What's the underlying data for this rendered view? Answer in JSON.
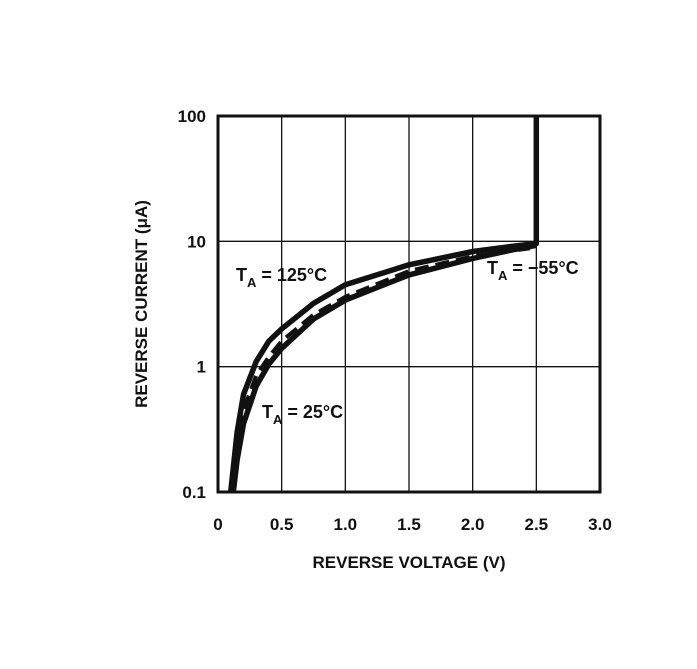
{
  "chart_data": {
    "type": "line",
    "xlabel": "REVERSE VOLTAGE (V)",
    "ylabel": "REVERSE CURRENT (μA)",
    "xlim": [
      0,
      3.0
    ],
    "ylim": [
      0.1,
      100
    ],
    "y_scale": "log",
    "grid": true,
    "x_ticks": [
      "0",
      "0.5",
      "1.0",
      "1.5",
      "2.0",
      "2.5",
      "3.0"
    ],
    "x_tick_values": [
      0,
      0.5,
      1.0,
      1.5,
      2.0,
      2.5,
      3.0
    ],
    "y_ticks": [
      "0.1",
      "1",
      "10",
      "100"
    ],
    "y_tick_values": [
      0.1,
      1,
      10,
      100
    ],
    "series": [
      {
        "name": "T_A = 125°C",
        "style": "solid",
        "x": [
          0.1,
          0.15,
          0.2,
          0.3,
          0.4,
          0.5,
          0.75,
          1.0,
          1.5,
          2.0,
          2.3,
          2.5,
          2.5
        ],
        "y": [
          0.1,
          0.3,
          0.6,
          1.1,
          1.6,
          2.0,
          3.2,
          4.5,
          6.5,
          8.3,
          9.1,
          9.6,
          100
        ]
      },
      {
        "name": "T_A = −55°C",
        "style": "dashed",
        "x": [
          0.12,
          0.15,
          0.2,
          0.3,
          0.4,
          0.5,
          0.75,
          1.0,
          1.5,
          2.0,
          2.3,
          2.45
        ],
        "y": [
          0.1,
          0.2,
          0.45,
          0.85,
          1.2,
          1.6,
          2.6,
          3.6,
          5.8,
          7.6,
          8.4,
          8.8
        ]
      },
      {
        "name": "T_A = 25°C",
        "style": "solid",
        "x": [
          0.12,
          0.15,
          0.2,
          0.3,
          0.4,
          0.5,
          0.75,
          1.0,
          1.5,
          2.0,
          2.3,
          2.5
        ],
        "y": [
          0.1,
          0.18,
          0.35,
          0.7,
          1.05,
          1.4,
          2.4,
          3.4,
          5.4,
          7.3,
          8.5,
          9.3
        ]
      }
    ],
    "annotations": [
      {
        "base": "T",
        "sub": "A",
        "rest": " = 125°C"
      },
      {
        "base": "T",
        "sub": "A",
        "rest": " = 25°C"
      },
      {
        "base": "T",
        "sub": "A",
        "rest": " = −55°C"
      }
    ]
  }
}
